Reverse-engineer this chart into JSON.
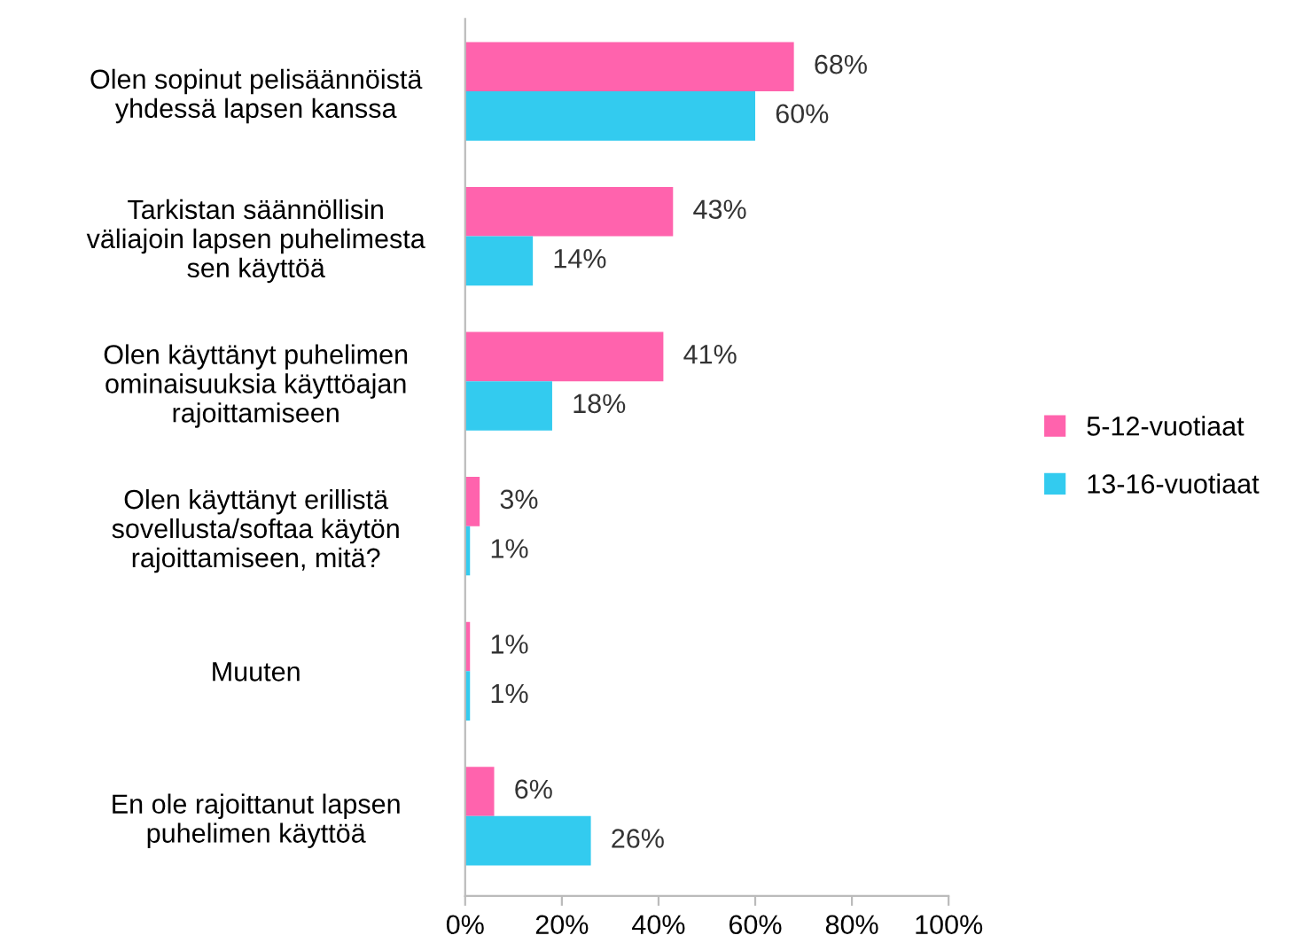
{
  "chart_data": {
    "type": "bar",
    "orientation": "horizontal",
    "categories": [
      "Olen sopinut pelisäännöistä\nyhdessä lapsen kanssa",
      "Tarkistan säännöllisin\nväliajoin lapsen puhelimesta\nsen käyttöä",
      "Olen käyttänyt puhelimen\nominaisuuksia käyttöajan\nrajoittamiseen",
      "Olen käyttänyt erillistä\nsovellusta/softaa käytön\nrajoittamiseen, mitä?",
      "Muuten",
      "En ole rajoittanut lapsen\npuhelimen käyttöä"
    ],
    "series": [
      {
        "name": "5-12-vuotiaat",
        "color": "#ff63ad",
        "values": [
          68,
          43,
          41,
          3,
          1,
          6
        ],
        "value_labels": [
          "68%",
          "43%",
          "41%",
          "3%",
          "1%",
          "6%"
        ]
      },
      {
        "name": "13-16-vuotiaat",
        "color": "#33cbef",
        "values": [
          60,
          14,
          18,
          1,
          1,
          26
        ],
        "value_labels": [
          "60%",
          "14%",
          "18%",
          "1%",
          "1%",
          "26%"
        ]
      }
    ],
    "xlim": [
      0,
      100
    ],
    "xticks": [
      {
        "value": 0,
        "label": "0%"
      },
      {
        "value": 20,
        "label": "20%"
      },
      {
        "value": 40,
        "label": "40%"
      },
      {
        "value": 60,
        "label": "60%"
      },
      {
        "value": 80,
        "label": "80%"
      },
      {
        "value": 100,
        "label": "100%"
      }
    ],
    "grid": false,
    "legend": "right"
  }
}
